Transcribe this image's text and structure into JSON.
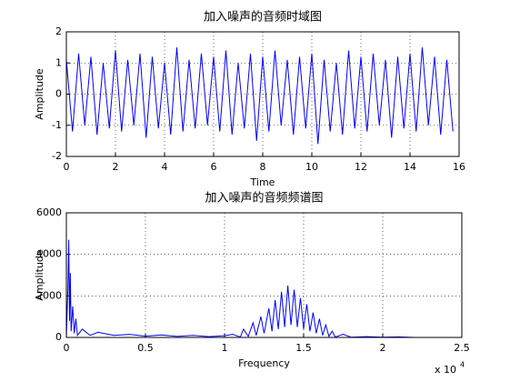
{
  "chart_data": [
    {
      "type": "line",
      "title": "加入噪声的音频时域图",
      "x_label": "Time",
      "y_label": "Amplitude",
      "xlim": [
        0,
        16
      ],
      "xticks": [
        0,
        2,
        4,
        6,
        8,
        10,
        12,
        14,
        16
      ],
      "ylim": [
        -2,
        2
      ],
      "yticks": [
        -2,
        -1,
        0,
        1,
        2
      ],
      "grid": true,
      "series": [
        {
          "color": "#0000ff",
          "x": [
            0,
            0.25,
            0.5,
            0.75,
            1,
            1.25,
            1.5,
            1.75,
            2,
            2.25,
            2.5,
            2.75,
            3,
            3.25,
            3.5,
            3.75,
            4,
            4.25,
            4.5,
            4.75,
            5,
            5.25,
            5.5,
            5.75,
            6,
            6.25,
            6.5,
            6.75,
            7,
            7.25,
            7.5,
            7.75,
            8,
            8.25,
            8.5,
            8.75,
            9,
            9.25,
            9.5,
            9.75,
            10,
            10.25,
            10.5,
            10.75,
            11,
            11.25,
            11.5,
            11.75,
            12,
            12.25,
            12.5,
            12.75,
            13,
            13.25,
            13.5,
            13.75,
            14,
            14.25,
            14.5,
            14.75,
            15,
            15.25,
            15.5,
            15.75
          ],
          "values": [
            1.1,
            -1.2,
            1.3,
            -1.0,
            1.2,
            -1.3,
            1.0,
            -1.1,
            1.4,
            -1.2,
            1.1,
            -1.0,
            1.3,
            -1.4,
            1.2,
            -1.1,
            1.0,
            -1.3,
            1.5,
            -1.2,
            1.1,
            -1.1,
            1.3,
            -1.0,
            1.2,
            -1.2,
            1.4,
            -1.3,
            1.0,
            -1.1,
            1.3,
            -1.5,
            1.2,
            -1.2,
            1.4,
            -1.0,
            1.1,
            -1.3,
            1.2,
            -1.1,
            1.3,
            -1.6,
            1.1,
            -1.2,
            1.0,
            -1.3,
            1.4,
            -1.1,
            1.2,
            -1.2,
            1.3,
            -1.0,
            1.1,
            -1.4,
            1.2,
            -1.1,
            1.3,
            -1.2,
            1.5,
            -1.0,
            1.2,
            -1.3,
            1.1,
            -1.2
          ]
        }
      ]
    },
    {
      "type": "line",
      "title": "加入噪声的音频频谱图",
      "x_label": "Frequency",
      "y_label": "Amplitude",
      "x_multiplier": {
        "base": "x 10",
        "exponent": "4"
      },
      "xlim": [
        0,
        2.5
      ],
      "xticks": [
        0,
        0.5,
        1,
        1.5,
        2,
        2.5
      ],
      "ylim": [
        0,
        6000
      ],
      "yticks": [
        0,
        2000,
        4000,
        6000
      ],
      "grid": true,
      "series": [
        {
          "color": "#0000ff",
          "x": [
            0,
            0.01,
            0.015,
            0.02,
            0.025,
            0.03,
            0.04,
            0.05,
            0.06,
            0.07,
            0.1,
            0.15,
            0.2,
            0.3,
            0.4,
            0.5,
            0.6,
            0.7,
            0.8,
            0.9,
            1.0,
            1.05,
            1.1,
            1.12,
            1.15,
            1.18,
            1.2,
            1.23,
            1.25,
            1.28,
            1.3,
            1.32,
            1.34,
            1.36,
            1.38,
            1.4,
            1.42,
            1.44,
            1.46,
            1.48,
            1.5,
            1.52,
            1.54,
            1.56,
            1.58,
            1.6,
            1.62,
            1.64,
            1.66,
            1.68,
            1.7,
            1.75,
            1.8,
            1.9,
            2.0,
            2.1,
            2.2
          ],
          "values": [
            0,
            2500,
            4700,
            800,
            3100,
            300,
            1500,
            200,
            900,
            100,
            400,
            100,
            250,
            100,
            150,
            60,
            120,
            50,
            100,
            40,
            80,
            150,
            20,
            400,
            50,
            700,
            100,
            1000,
            200,
            1400,
            300,
            1800,
            400,
            2200,
            500,
            2500,
            600,
            2300,
            500,
            1900,
            400,
            1600,
            300,
            1200,
            200,
            900,
            100,
            600,
            50,
            300,
            20,
            150,
            10,
            40,
            10,
            30,
            0
          ]
        }
      ]
    }
  ]
}
